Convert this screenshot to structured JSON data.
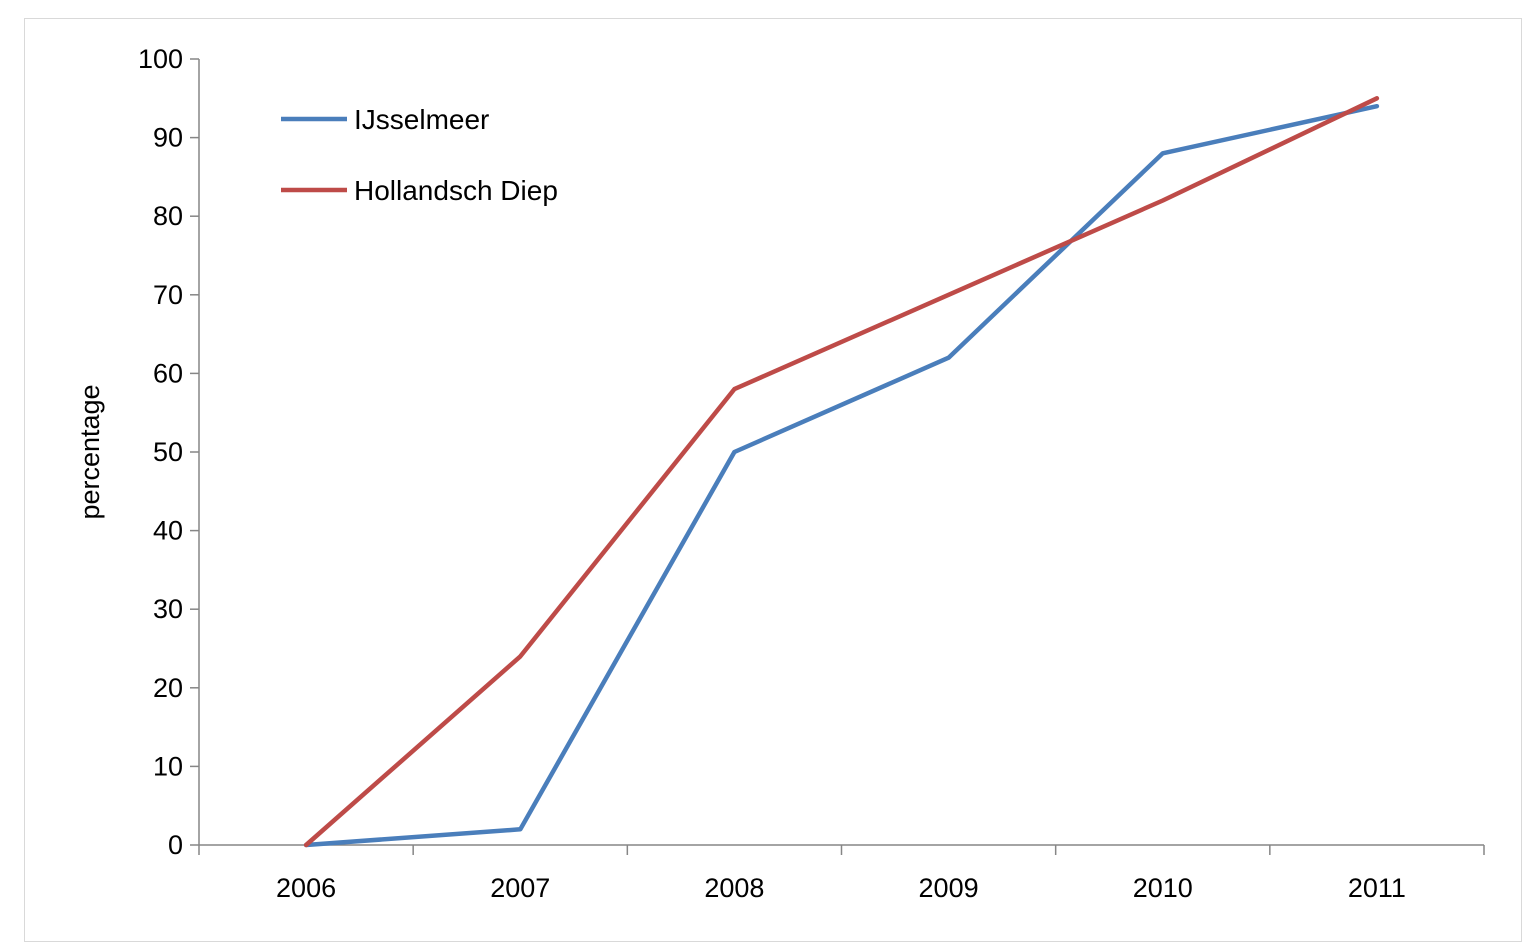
{
  "chart_data": {
    "type": "line",
    "x": [
      "2006",
      "2007",
      "2008",
      "2009",
      "2010",
      "2011"
    ],
    "series": [
      {
        "name": "IJsselmeer",
        "color": "#4a7ebb",
        "values": [
          0,
          2,
          50,
          62,
          88,
          94
        ]
      },
      {
        "name": "Hollandsch Diep",
        "color": "#be4b48",
        "values": [
          0,
          24,
          58,
          70,
          82,
          95
        ]
      }
    ],
    "ylabel": "percentage",
    "ylim": [
      0,
      100
    ],
    "yticks": [
      "0",
      "10",
      "20",
      "30",
      "40",
      "50",
      "60",
      "70",
      "80",
      "90",
      "100"
    ],
    "legend_position": "top-left",
    "grid": false
  }
}
